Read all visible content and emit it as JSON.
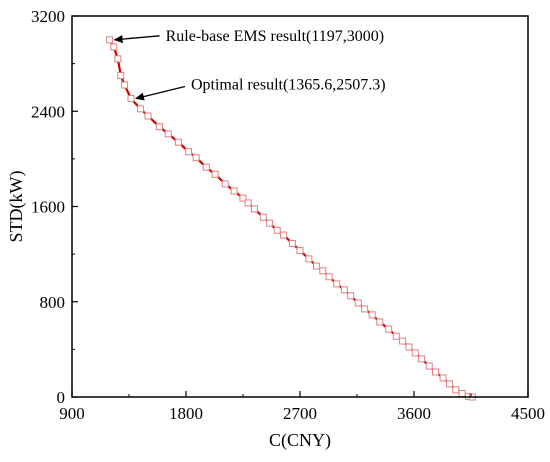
{
  "chart_data": {
    "type": "line",
    "xlabel": "C(CNY)",
    "ylabel": "STD(kW)",
    "xlim": [
      900,
      4500
    ],
    "ylim": [
      0,
      3200
    ],
    "xticks": [
      900,
      1800,
      2700,
      3600,
      4500
    ],
    "yticks": [
      0,
      800,
      1600,
      2400,
      3200
    ],
    "grid": false,
    "colors": {
      "line": "#cc0000",
      "marker": "#e08080",
      "axis": "#000000"
    },
    "series": [
      {
        "marker": "open-square",
        "x": [
          1197,
          1230,
          1262,
          1285,
          1315,
          1365.6,
          1440,
          1500,
          1590,
          1660,
          1740,
          1820,
          1880,
          1960,
          2030,
          2110,
          2180,
          2250,
          2290,
          2340,
          2410,
          2460,
          2520,
          2570,
          2640,
          2700,
          2770,
          2830,
          2880,
          2930,
          2990,
          3050,
          3100,
          3160,
          3210,
          3270,
          3330,
          3400,
          3460,
          3510,
          3560,
          3610,
          3660,
          3720,
          3770,
          3830,
          3880,
          3930,
          3980,
          4030,
          4060
        ],
        "y": [
          3000,
          2940,
          2840,
          2700,
          2620,
          2507.3,
          2420,
          2360,
          2270,
          2210,
          2140,
          2060,
          2010,
          1930,
          1870,
          1790,
          1730,
          1670,
          1630,
          1580,
          1510,
          1460,
          1400,
          1360,
          1290,
          1230,
          1160,
          1100,
          1060,
          1010,
          950,
          900,
          850,
          790,
          740,
          690,
          630,
          570,
          510,
          470,
          420,
          370,
          320,
          260,
          210,
          160,
          110,
          60,
          30,
          5,
          0
        ]
      }
    ],
    "annotations": [
      {
        "text": "Rule-base EMS result(1197,3000)",
        "x": 1197,
        "y": 3000
      },
      {
        "text": "Optimal result(1365.6,2507.3)",
        "x": 1365.6,
        "y": 2507.3
      }
    ]
  }
}
